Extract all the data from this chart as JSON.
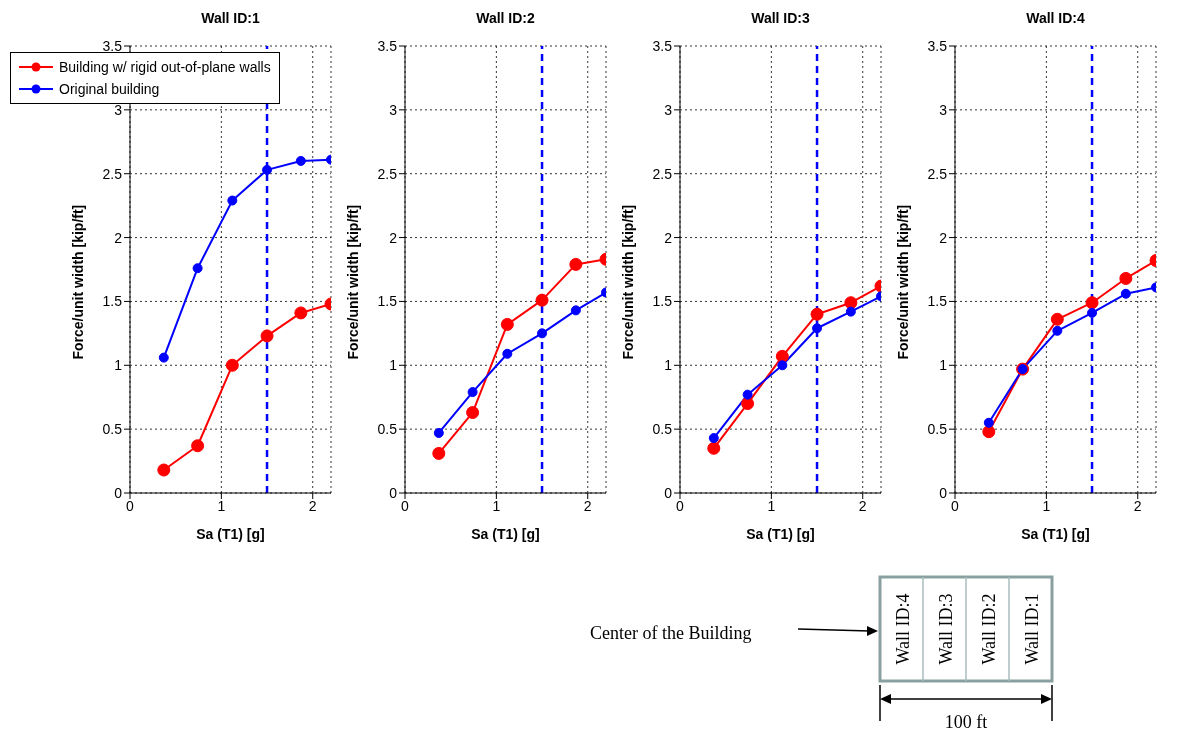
{
  "chart_data": [
    {
      "type": "line",
      "title": "Wall ID:1",
      "xlabel": "Sa (T1) [g]",
      "ylabel": "Force/unit width [kip/ft]",
      "x": [
        0.37,
        0.74,
        1.12,
        1.5,
        1.87,
        2.2
      ],
      "series": [
        {
          "name": "Building w/ rigid out-of-plane walls",
          "color": "#ff0000",
          "values": [
            0.18,
            0.37,
            1.0,
            1.23,
            1.41,
            1.48
          ]
        },
        {
          "name": "Original building",
          "color": "#0000ff",
          "values": [
            1.06,
            1.76,
            2.29,
            2.53,
            2.6,
            2.61
          ]
        }
      ],
      "xlim": [
        0,
        2.2
      ],
      "xticks": [
        0,
        1,
        2
      ],
      "ylim": [
        0,
        3.5
      ],
      "yticks": [
        0,
        0.5,
        1,
        1.5,
        2,
        2.5,
        3,
        3.5
      ],
      "grid": true,
      "legend": "top left",
      "marker": "circle",
      "line_style": "solid",
      "ref_lines": [
        {
          "axis": "x",
          "value": 1.5,
          "color": "#0000ff",
          "line_style": "dashed"
        }
      ]
    },
    {
      "type": "line",
      "title": "Wall ID:2",
      "xlabel": "Sa (T1) [g]",
      "ylabel": "Force/unit width [kip/ft]",
      "x": [
        0.37,
        0.74,
        1.12,
        1.5,
        1.87,
        2.2
      ],
      "series": [
        {
          "color": "#ff0000",
          "values": [
            0.31,
            0.63,
            1.32,
            1.51,
            1.79,
            1.83
          ]
        },
        {
          "color": "#0000ff",
          "values": [
            0.47,
            0.79,
            1.09,
            1.25,
            1.43,
            1.57
          ]
        }
      ],
      "xlim": [
        0,
        2.2
      ],
      "xticks": [
        0,
        1,
        2
      ],
      "ylim": [
        0,
        3.5
      ],
      "yticks": [
        0,
        0.5,
        1,
        1.5,
        2,
        2.5,
        3,
        3.5
      ],
      "grid": true,
      "marker": "circle",
      "line_style": "solid",
      "ref_lines": [
        {
          "axis": "x",
          "value": 1.5,
          "color": "#0000ff",
          "line_style": "dashed"
        }
      ]
    },
    {
      "type": "line",
      "title": "Wall ID:3",
      "xlabel": "Sa (T1) [g]",
      "ylabel": "Force/unit width [kip/ft]",
      "x": [
        0.37,
        0.74,
        1.12,
        1.5,
        1.87,
        2.2
      ],
      "series": [
        {
          "color": "#ff0000",
          "values": [
            0.35,
            0.7,
            1.07,
            1.4,
            1.49,
            1.62
          ]
        },
        {
          "color": "#0000ff",
          "values": [
            0.43,
            0.77,
            1.0,
            1.29,
            1.42,
            1.54
          ]
        }
      ],
      "xlim": [
        0,
        2.2
      ],
      "xticks": [
        0,
        1,
        2
      ],
      "ylim": [
        0,
        3.5
      ],
      "yticks": [
        0,
        0.5,
        1,
        1.5,
        2,
        2.5,
        3,
        3.5
      ],
      "grid": true,
      "marker": "circle",
      "line_style": "solid",
      "ref_lines": [
        {
          "axis": "x",
          "value": 1.5,
          "color": "#0000ff",
          "line_style": "dashed"
        }
      ]
    },
    {
      "type": "line",
      "title": "Wall ID:4",
      "xlabel": "Sa (T1) [g]",
      "ylabel": "Force/unit width [kip/ft]",
      "x": [
        0.37,
        0.74,
        1.12,
        1.5,
        1.87,
        2.2
      ],
      "series": [
        {
          "color": "#ff0000",
          "values": [
            0.48,
            0.97,
            1.36,
            1.49,
            1.68,
            1.82
          ]
        },
        {
          "color": "#0000ff",
          "values": [
            0.55,
            0.97,
            1.27,
            1.41,
            1.56,
            1.61
          ]
        }
      ],
      "xlim": [
        0,
        2.2
      ],
      "xticks": [
        0,
        1,
        2
      ],
      "ylim": [
        0,
        3.5
      ],
      "yticks": [
        0,
        0.5,
        1,
        1.5,
        2,
        2.5,
        3,
        3.5
      ],
      "grid": true,
      "marker": "circle",
      "line_style": "solid",
      "ref_lines": [
        {
          "axis": "x",
          "value": 1.5,
          "color": "#0000ff",
          "line_style": "dashed"
        }
      ]
    },
    {
      "type": "other",
      "annotations": [
        "Center of the Building",
        "Wall ID:4",
        "Wall ID:3",
        "Wall ID:2",
        "Wall ID:1",
        "100 ft"
      ]
    }
  ]
}
